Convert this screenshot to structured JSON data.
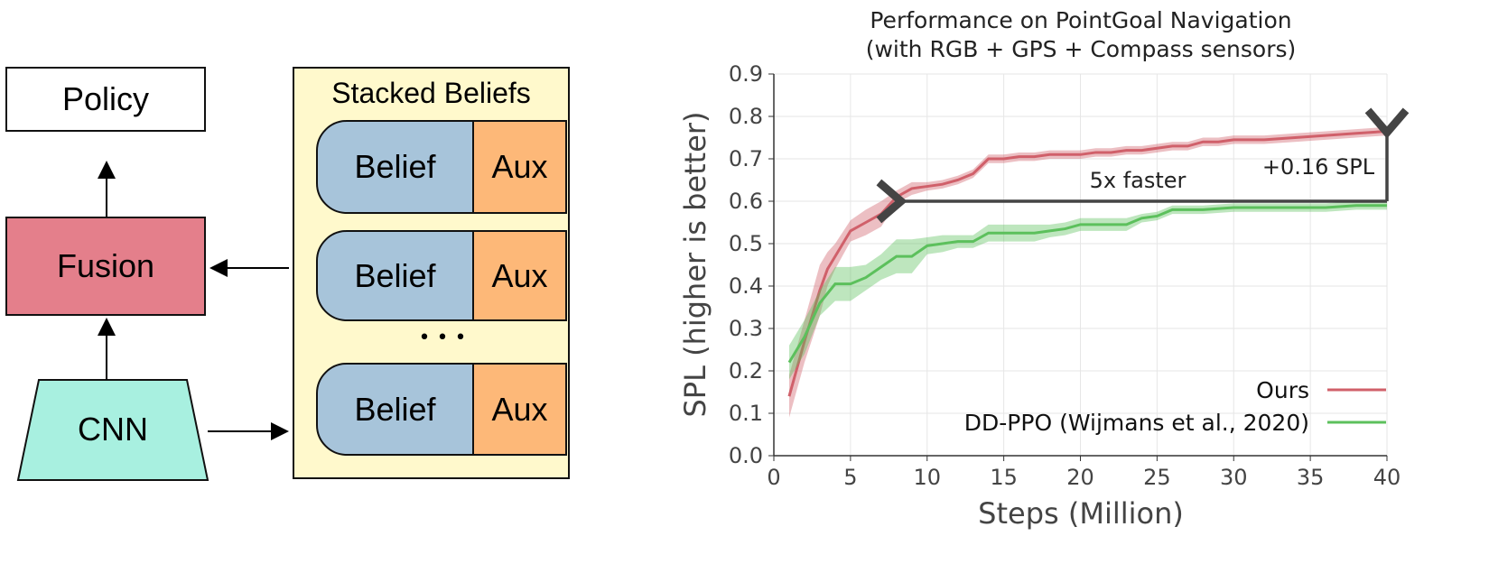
{
  "diagram": {
    "policy": "Policy",
    "fusion": "Fusion",
    "cnn": "CNN",
    "stack_title": "Stacked Beliefs",
    "belief": "Belief",
    "aux": "Aux",
    "ellipsis": "• • •",
    "colors": {
      "fusion": "#e47f8b",
      "cnn": "#a8f0e0",
      "stack": "#fff9cc",
      "belief": "#a7c4da",
      "aux": "#fdb878"
    }
  },
  "chart_data": {
    "type": "line",
    "title": "Performance on PointGoal Navigation",
    "subtitle": "(with RGB + GPS + Compass sensors)",
    "xlabel": "Steps (Million)",
    "ylabel": "SPL (higher is better)",
    "xlim": [
      0,
      40
    ],
    "ylim": [
      0,
      0.9
    ],
    "xticks": [
      "0",
      "5",
      "10",
      "15",
      "20",
      "25",
      "30",
      "35",
      "40"
    ],
    "yticks": [
      "0.0",
      "0.1",
      "0.2",
      "0.3",
      "0.4",
      "0.5",
      "0.6",
      "0.7",
      "0.8",
      "0.9"
    ],
    "grid": true,
    "legend_position": "bottom-right",
    "annotations": {
      "faster": "5x faster",
      "gain": "+0.16 SPL"
    },
    "series": [
      {
        "name": "Ours",
        "color": "#d0606a",
        "x": [
          1,
          2,
          3,
          3.5,
          4,
          5,
          6,
          7,
          8,
          9,
          10,
          11,
          12,
          13,
          14,
          15,
          16,
          17,
          18,
          19,
          20,
          21,
          22,
          23,
          24,
          25,
          26,
          27,
          28,
          29,
          30,
          32,
          34,
          36,
          38,
          40
        ],
        "y": [
          0.14,
          0.27,
          0.39,
          0.44,
          0.47,
          0.53,
          0.55,
          0.57,
          0.61,
          0.63,
          0.635,
          0.64,
          0.65,
          0.665,
          0.7,
          0.7,
          0.705,
          0.705,
          0.71,
          0.71,
          0.71,
          0.715,
          0.715,
          0.72,
          0.72,
          0.725,
          0.73,
          0.73,
          0.74,
          0.74,
          0.745,
          0.745,
          0.75,
          0.755,
          0.76,
          0.765
        ],
        "band": [
          0.05,
          0.05,
          0.06,
          0.04,
          0.03,
          0.025,
          0.03,
          0.03,
          0.015,
          0.015,
          0.01,
          0.01,
          0.01,
          0.01,
          0.01,
          0.01,
          0.01,
          0.01,
          0.01,
          0.01,
          0.01,
          0.01,
          0.01,
          0.01,
          0.01,
          0.01,
          0.01,
          0.01,
          0.01,
          0.01,
          0.01,
          0.01,
          0.01,
          0.01,
          0.01,
          0.01
        ]
      },
      {
        "name": "DD-PPO (Wijmans et al., 2020)",
        "color": "#5cc05c",
        "x": [
          1,
          2,
          3,
          4,
          5,
          6,
          7,
          8,
          9,
          10,
          11,
          12,
          13,
          14,
          15,
          16,
          17,
          18,
          19,
          20,
          21,
          22,
          23,
          24,
          25,
          26,
          27,
          28,
          30,
          32,
          34,
          36,
          38,
          40
        ],
        "y": [
          0.22,
          0.28,
          0.36,
          0.405,
          0.405,
          0.42,
          0.445,
          0.47,
          0.47,
          0.495,
          0.5,
          0.505,
          0.505,
          0.525,
          0.525,
          0.525,
          0.525,
          0.53,
          0.535,
          0.545,
          0.545,
          0.545,
          0.545,
          0.56,
          0.565,
          0.58,
          0.58,
          0.58,
          0.585,
          0.585,
          0.585,
          0.585,
          0.59,
          0.59
        ],
        "band": [
          0.04,
          0.04,
          0.03,
          0.04,
          0.04,
          0.03,
          0.03,
          0.04,
          0.04,
          0.02,
          0.02,
          0.015,
          0.015,
          0.02,
          0.02,
          0.02,
          0.02,
          0.015,
          0.015,
          0.015,
          0.015,
          0.015,
          0.015,
          0.01,
          0.01,
          0.01,
          0.01,
          0.01,
          0.01,
          0.01,
          0.01,
          0.01,
          0.01,
          0.01
        ]
      }
    ]
  }
}
